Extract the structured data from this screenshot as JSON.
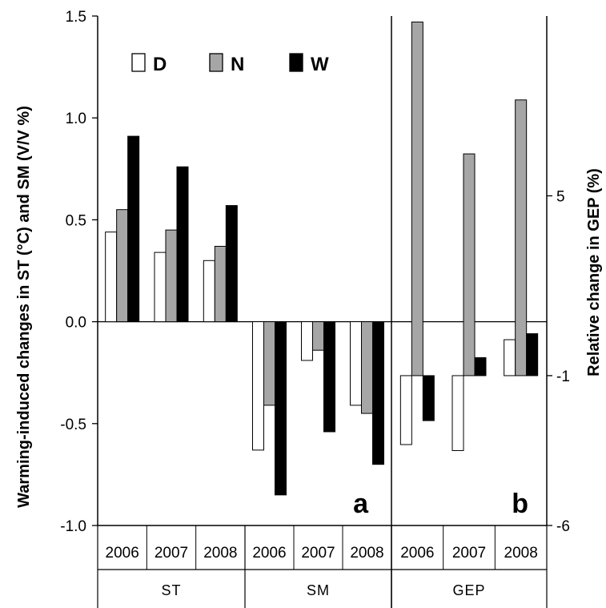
{
  "chart_data": {
    "type": "bar",
    "left_axis": {
      "label": "Warming-induced changes in ST (°C) and SM (V/V %)",
      "range": [
        -1.0,
        1.5
      ],
      "ticks": [
        -1.0,
        -0.5,
        0.0,
        0.5,
        1.0,
        1.5
      ],
      "tick_labels": [
        "-1.0",
        "-0.5",
        "0.0",
        "0.5",
        "1.0",
        "1.5"
      ]
    },
    "right_axis": {
      "label": "Relative change in GEP (%)",
      "range": [
        -6,
        11
      ],
      "ticks": [
        -6,
        -1,
        5
      ],
      "tick_labels": [
        "-6",
        "-1",
        "5"
      ]
    },
    "legend": {
      "placement": "top-left",
      "entries": [
        {
          "name": "D",
          "color": "#ffffff"
        },
        {
          "name": "N",
          "color": "#a6a6a6"
        },
        {
          "name": "W",
          "color": "#000000"
        }
      ]
    },
    "panels": [
      {
        "letter": "a",
        "axis": "left"
      },
      {
        "letter": "b",
        "axis": "right"
      }
    ],
    "groups": [
      {
        "name": "ST",
        "axis": "left",
        "years": [
          "2006",
          "2007",
          "2008"
        ],
        "series": [
          {
            "name": "D",
            "values": [
              0.44,
              0.34,
              0.3
            ]
          },
          {
            "name": "N",
            "values": [
              0.55,
              0.45,
              0.37
            ]
          },
          {
            "name": "W",
            "values": [
              0.91,
              0.76,
              0.57
            ]
          }
        ]
      },
      {
        "name": "SM",
        "axis": "left",
        "years": [
          "2006",
          "2007",
          "2008"
        ],
        "series": [
          {
            "name": "D",
            "values": [
              -0.63,
              -0.19,
              -0.41
            ]
          },
          {
            "name": "N",
            "values": [
              -0.41,
              -0.14,
              -0.45
            ]
          },
          {
            "name": "W",
            "values": [
              -0.85,
              -0.54,
              -0.7
            ]
          }
        ]
      },
      {
        "name": "GEP",
        "axis": "right",
        "years": [
          "2006",
          "2007",
          "2008"
        ],
        "series": [
          {
            "name": "D",
            "values": [
              -3.3,
              -3.5,
              0.2
            ]
          },
          {
            "name": "N",
            "values": [
              10.8,
              6.4,
              8.2
            ]
          },
          {
            "name": "W",
            "values": [
              -2.5,
              -0.4,
              0.4
            ]
          }
        ]
      }
    ]
  }
}
